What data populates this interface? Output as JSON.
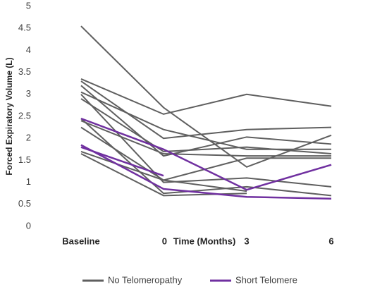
{
  "chart_data": {
    "type": "line",
    "xlabel": "Time (Months)",
    "ylabel": "Forced Expiratory Volume (L)",
    "categories": [
      "Baseline",
      "0",
      "3",
      "6"
    ],
    "ylim": [
      0,
      5
    ],
    "yticks": [
      0,
      0.5,
      1,
      1.5,
      2,
      2.5,
      3,
      3.5,
      4,
      4.5,
      5
    ],
    "grid": false,
    "legend": "bottom",
    "series": [
      {
        "name": "No Telomeropathy",
        "color": "#5f5f5f",
        "lines": [
          [
            3.35,
            2.55,
            3.0,
            2.73
          ],
          [
            3.3,
            2.0,
            2.2,
            2.25
          ],
          [
            3.2,
            1.6,
            2.03,
            1.87
          ],
          [
            3.05,
            2.2,
            1.75,
            1.75
          ],
          [
            2.9,
            1.7,
            1.8,
            1.65
          ],
          [
            4.55,
            2.7,
            1.35,
            2.07
          ],
          [
            2.4,
            1.65,
            1.6,
            1.6
          ],
          [
            2.25,
            1.05,
            1.55,
            1.55
          ],
          [
            2.45,
            0.75,
            0.9,
            0.7
          ],
          [
            1.65,
            0.7,
            0.75,
            null
          ],
          [
            3.0,
            1.0,
            1.1,
            0.9
          ],
          [
            1.7,
            1.05,
            0.8,
            null
          ]
        ]
      },
      {
        "name": "Short Telomere",
        "color": "#7030a0",
        "lines": [
          [
            2.45,
            1.75,
            0.83,
            1.4
          ],
          [
            1.85,
            0.85,
            0.67,
            0.63
          ],
          [
            1.8,
            1.15,
            null,
            null
          ]
        ]
      }
    ]
  }
}
